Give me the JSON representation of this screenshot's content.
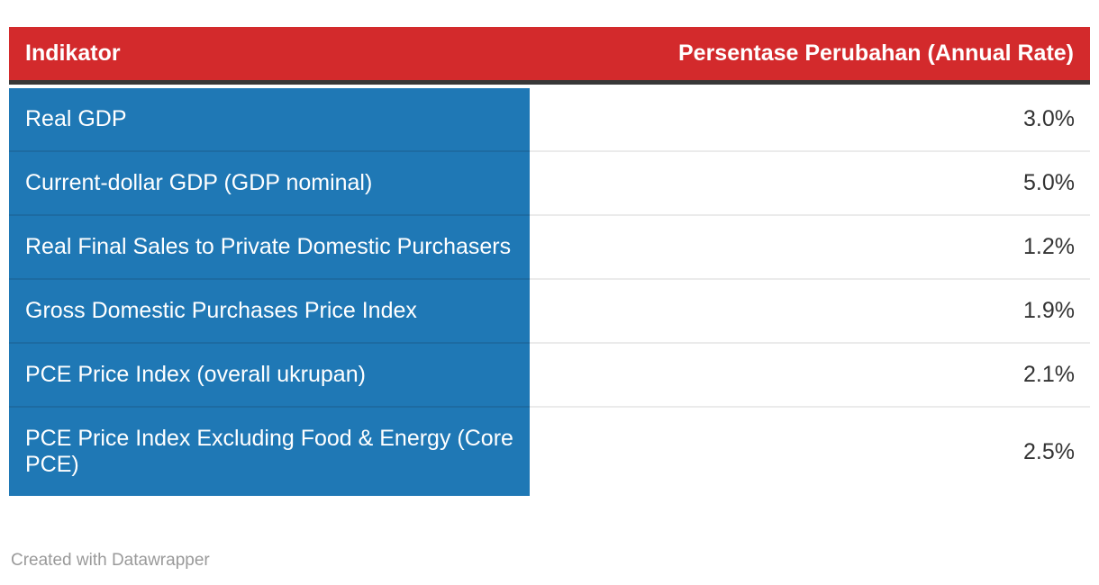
{
  "table": {
    "columns": {
      "indicator_header": "Indikator",
      "value_header": "Persentase Perubahan (Annual Rate)"
    },
    "rows": [
      {
        "indicator": "Real GDP",
        "value": "3.0%"
      },
      {
        "indicator": "Current-dollar GDP (GDP nominal)",
        "value": "5.0%"
      },
      {
        "indicator": "Real Final Sales to Private Domestic Purchasers",
        "value": "1.2%"
      },
      {
        "indicator": "Gross Domestic Purchases Price Index",
        "value": "1.9%"
      },
      {
        "indicator": "PCE Price Index (overall ukrupan)",
        "value": "2.1%"
      },
      {
        "indicator": "PCE Price Index Excluding Food & Energy (Core PCE)",
        "value": "2.5%"
      }
    ]
  },
  "footer": {
    "credit": "Created with Datawrapper"
  },
  "colors": {
    "header_bg": "#d32a2c",
    "header_border": "#383838",
    "row_bg": "#1f78b5",
    "row_separator_blue": "#1d6ba2",
    "row_separator_gray": "#ebebeb",
    "value_text": "#333333",
    "credit_text": "#9a9a9a"
  },
  "chart_data": {
    "type": "table",
    "title": "",
    "columns": [
      "Indikator",
      "Persentase Perubahan (Annual Rate)"
    ],
    "categories": [
      "Real GDP",
      "Current-dollar GDP (GDP nominal)",
      "Real Final Sales to Private Domestic Purchasers",
      "Gross Domestic Purchases Price Index",
      "PCE Price Index (overall ukrupan)",
      "PCE Price Index Excluding Food & Energy (Core PCE)"
    ],
    "values": [
      3.0,
      5.0,
      1.2,
      1.9,
      2.1,
      2.5
    ],
    "value_unit": "%",
    "source_note": "Created with Datawrapper"
  }
}
